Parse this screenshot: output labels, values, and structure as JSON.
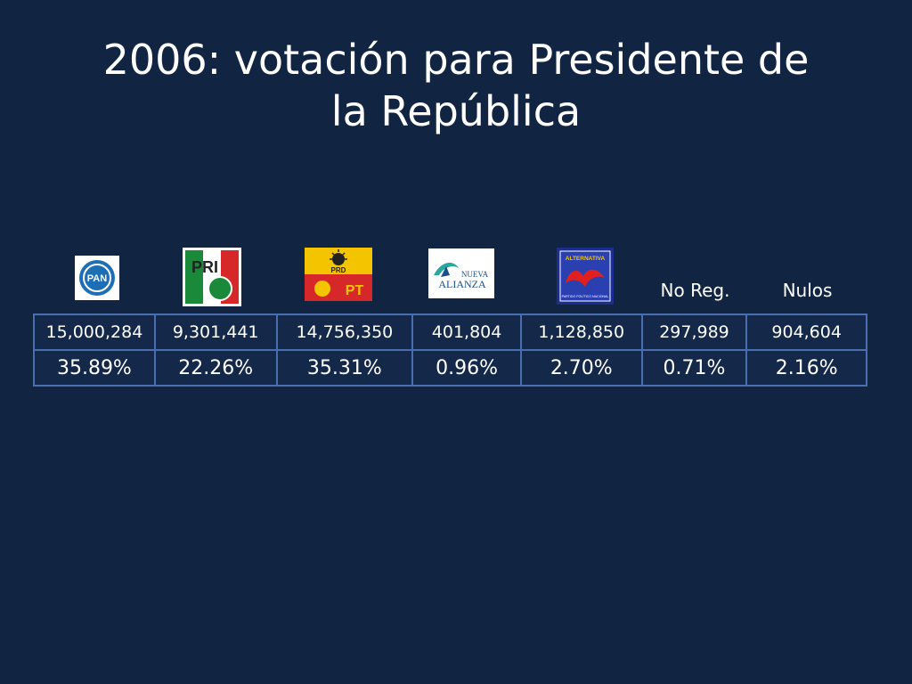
{
  "title_line1": "2006: votación para Presidente de",
  "title_line2": "la República",
  "parties": [
    {
      "logo": "PAN",
      "votes": "15,000,284",
      "percent": "35.89%"
    },
    {
      "logo": "PRI",
      "votes": "9,301,441",
      "percent": "22.26%"
    },
    {
      "logo": "PRD PT",
      "votes": "14,756,350",
      "percent": "35.31%"
    },
    {
      "logo": "Nueva Alianza",
      "votes": "401,804",
      "percent": "0.96%"
    },
    {
      "logo": "Alternativa",
      "votes": "1,128,850",
      "percent": "2.70%"
    },
    {
      "label": "No Reg.",
      "votes": "297,989",
      "percent": "0.71%"
    },
    {
      "label": "Nulos",
      "votes": "904,604",
      "percent": "2.16%"
    }
  ],
  "logo_texts": {
    "pan": "PAN",
    "pri": "PRI",
    "prd": "PRD",
    "pt": "PT",
    "nueva": "NUEVA",
    "alianza": "ALIANZA",
    "alternativa": "ALTERNATIVA",
    "alternativa_sub": "PARTIDO POLÍTICO NACIONAL"
  },
  "colors": {
    "background": "#112542",
    "cell_border": "#4a6fb0",
    "pan_blue": "#1d6fb5",
    "pri_green": "#1a8a3a",
    "pri_red": "#d62828",
    "prd_yellow": "#f5c400",
    "pt_red": "#d62828",
    "alternativa_red": "#e02020",
    "alternativa_blue": "#1b2d8f"
  }
}
